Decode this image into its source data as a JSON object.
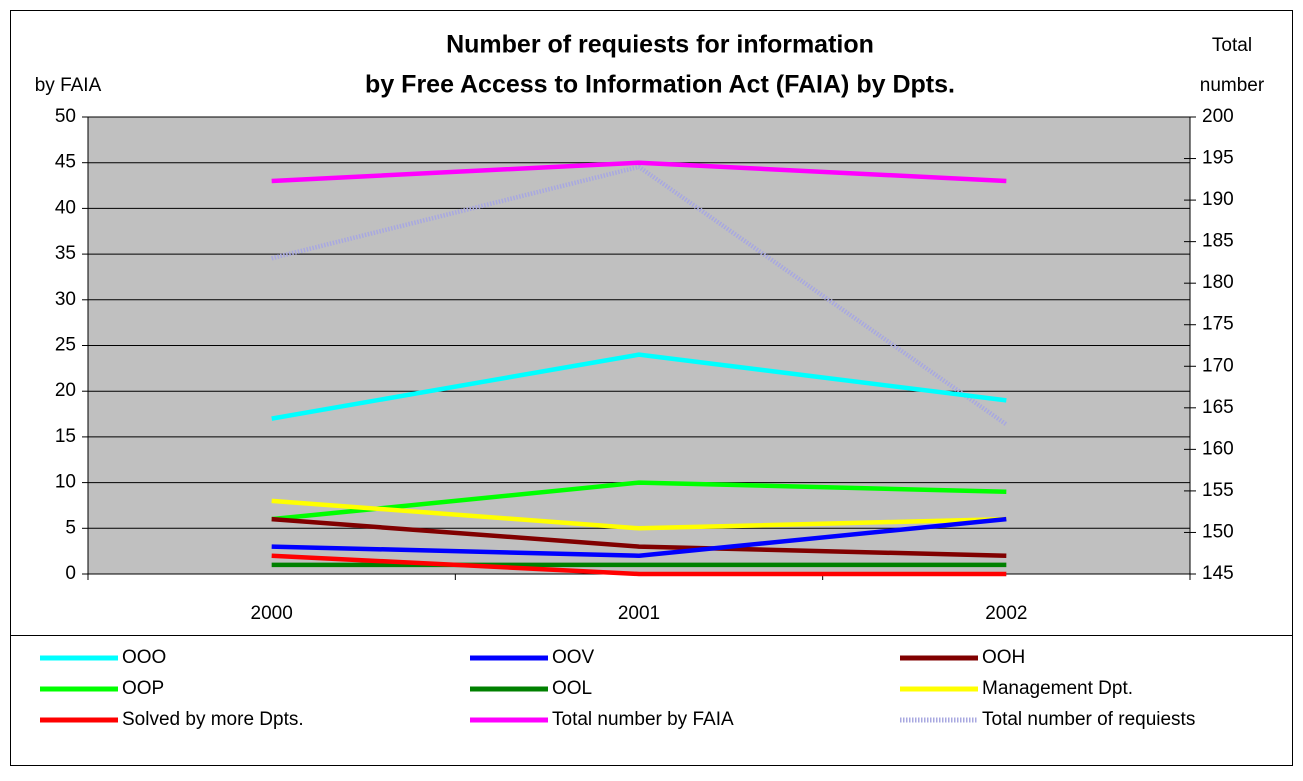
{
  "chart_data": {
    "type": "line",
    "title": [
      "Number of requiests for information",
      "by Free Access to Information Act (FAIA) by Dpts."
    ],
    "ylabel": "by FAIA",
    "y2label": [
      "Total",
      "number"
    ],
    "categories": [
      "2000",
      "2001",
      "2002"
    ],
    "ylim": [
      0,
      50
    ],
    "yticks": [
      0,
      5,
      10,
      15,
      20,
      25,
      30,
      35,
      40,
      45,
      50
    ],
    "y2lim": [
      145,
      200
    ],
    "y2ticks": [
      145,
      150,
      155,
      160,
      165,
      170,
      175,
      180,
      185,
      190,
      195,
      200
    ],
    "grid": true,
    "legend": "bottom",
    "series": [
      {
        "name": "OOO",
        "color": "#00ffff",
        "values": [
          17,
          24,
          19
        ]
      },
      {
        "name": "OOV",
        "color": "#0000ff",
        "values": [
          3,
          2,
          6
        ]
      },
      {
        "name": "OOH",
        "color": "#800000",
        "values": [
          6,
          3,
          2
        ]
      },
      {
        "name": "OOP",
        "color": "#00ff00",
        "values": [
          6,
          10,
          9
        ]
      },
      {
        "name": "OOL",
        "color": "#008000",
        "values": [
          1,
          1,
          1
        ]
      },
      {
        "name": "Management Dpt.",
        "color": "#ffff00",
        "values": [
          8,
          5,
          6
        ]
      },
      {
        "name": "Solved by more Dpts.",
        "color": "#ff0000",
        "values": [
          2,
          0,
          0
        ]
      },
      {
        "name": "Total number by FAIA",
        "color": "#ff00ff",
        "values": [
          43,
          45,
          43
        ]
      },
      {
        "name": "Total number of requiests",
        "color": "#a8a8e0",
        "axis": "y2",
        "values": [
          183,
          194,
          163
        ]
      }
    ]
  }
}
